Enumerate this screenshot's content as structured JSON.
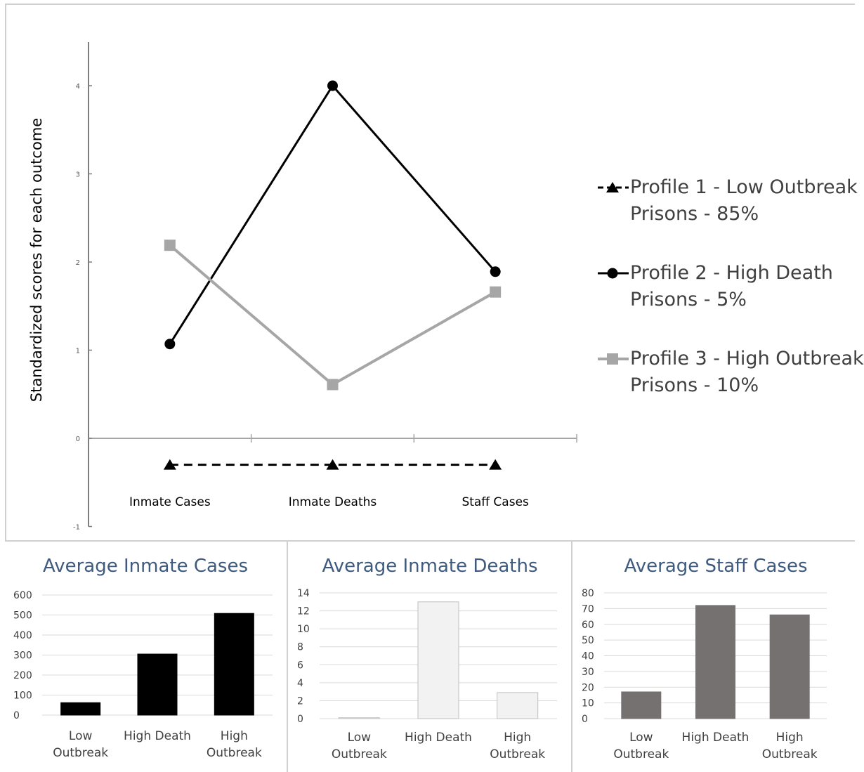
{
  "chart_data": [
    {
      "type": "line",
      "ylabel": "Standardized scores for each outcome",
      "xlabel": "",
      "title": "",
      "categories": [
        "Inmate Cases",
        "Inmate Deaths",
        "Staff Cases"
      ],
      "yticks": [
        "-1",
        "0",
        "1",
        "2",
        "3",
        "4"
      ],
      "ylim": [
        -1,
        4.5
      ],
      "grid": false,
      "legend_position": "right",
      "series": [
        {
          "name": "Profile 1 - Low Outbreak Prisons - 85%",
          "name_lines": [
            "Profile 1 - Low Outbreak",
            "Prisons - 85%"
          ],
          "values": [
            -0.3,
            -0.3,
            -0.3
          ],
          "color": "#000000",
          "marker": "triangle",
          "dash": true
        },
        {
          "name": "Profile 2 - High Death Prisons - 5%",
          "name_lines": [
            "Profile 2 - High Death",
            "Prisons - 5%"
          ],
          "values": [
            1.07,
            4.0,
            1.89
          ],
          "color": "#000000",
          "marker": "circle",
          "dash": false
        },
        {
          "name": "Profile 3 - High Outbreak Prisons - 10%",
          "name_lines": [
            "Profile 3 - High Outbreak",
            "Prisons - 10%"
          ],
          "values": [
            2.19,
            0.61,
            1.66
          ],
          "color": "#a6a6a6",
          "marker": "square",
          "dash": false
        }
      ]
    },
    {
      "type": "bar",
      "title": "Average Inmate Cases",
      "categories": [
        "Low Outbreak",
        "High Death",
        "High Outbreak"
      ],
      "category_lines": [
        [
          "Low",
          "Outbreak"
        ],
        [
          "High Death"
        ],
        [
          "High",
          "Outbreak"
        ]
      ],
      "values": [
        62,
        305,
        508
      ],
      "yticks": [
        "0",
        "100",
        "200",
        "300",
        "400",
        "500",
        "600"
      ],
      "ylim": [
        0,
        600
      ],
      "bar_color": "#000000",
      "bar_stroke": "#000000",
      "grid": true
    },
    {
      "type": "bar",
      "title": "Average Inmate Deaths",
      "categories": [
        "Low Outbreak",
        "High Death",
        "High Outbreak"
      ],
      "category_lines": [
        [
          "Low",
          "Outbreak"
        ],
        [
          "High Death"
        ],
        [
          "High",
          "Outbreak"
        ]
      ],
      "values": [
        0.1,
        13,
        2.9
      ],
      "yticks": [
        "0",
        "2",
        "4",
        "6",
        "8",
        "10",
        "12",
        "14"
      ],
      "ylim": [
        0,
        14
      ],
      "bar_color": "#f2f2f2",
      "bar_stroke": "#bfbfbf",
      "grid": true
    },
    {
      "type": "bar",
      "title": "Average Staff Cases",
      "categories": [
        "Low Outbreak",
        "High  Death",
        "High Outbreak"
      ],
      "category_lines": [
        [
          "Low",
          "Outbreak"
        ],
        [
          "High  Death"
        ],
        [
          "High",
          "Outbreak"
        ]
      ],
      "values": [
        17,
        72,
        66
      ],
      "yticks": [
        "0",
        "10",
        "20",
        "30",
        "40",
        "50",
        "60",
        "70",
        "80"
      ],
      "ylim": [
        0,
        80
      ],
      "bar_color": "#757171",
      "bar_stroke": "#757171",
      "grid": true
    }
  ]
}
